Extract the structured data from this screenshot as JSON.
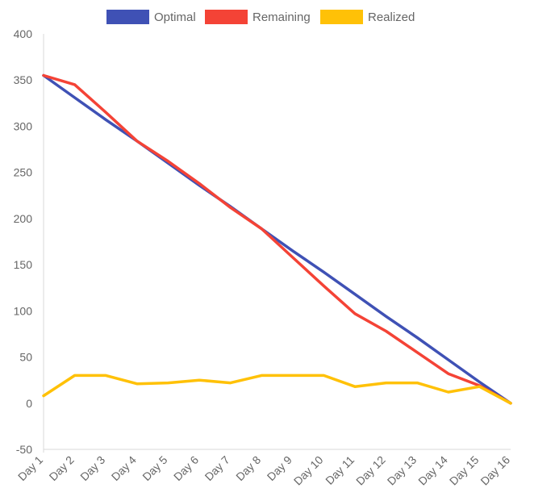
{
  "chart_data": {
    "type": "line",
    "title": "",
    "xlabel": "",
    "ylabel": "",
    "categories": [
      "Day 1",
      "Day 2",
      "Day 3",
      "Day 4",
      "Day 5",
      "Day 6",
      "Day 7",
      "Day 8",
      "Day 9",
      "Day 10",
      "Day 11",
      "Day 12",
      "Day 13",
      "Day 14",
      "Day 15",
      "Day 16"
    ],
    "ylim": [
      -50,
      400
    ],
    "yticks": [
      -50,
      0,
      50,
      100,
      150,
      200,
      250,
      300,
      350,
      400
    ],
    "grid": false,
    "legend_position": "top",
    "series": [
      {
        "name": "Optimal",
        "color": "#3f51b5",
        "values": [
          355,
          331,
          307,
          284,
          260,
          236,
          213,
          189,
          165,
          142,
          118,
          94,
          71,
          47,
          23,
          0
        ]
      },
      {
        "name": "Remaining",
        "color": "#f44336",
        "values": [
          355,
          345,
          315,
          284,
          262,
          238,
          212,
          189,
          158,
          127,
          97,
          78,
          55,
          32,
          19,
          0
        ]
      },
      {
        "name": "Realized",
        "color": "#ffc107",
        "values": [
          8,
          30,
          30,
          21,
          22,
          25,
          22,
          30,
          30,
          30,
          18,
          22,
          22,
          12,
          18,
          0
        ]
      }
    ]
  }
}
